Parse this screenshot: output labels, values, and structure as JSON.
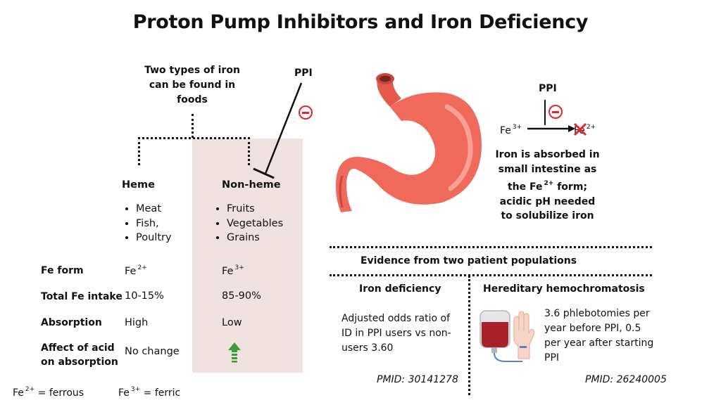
{
  "title": "Proton Pump Inhibitors and Iron Deficiency",
  "left": {
    "intro": "Two types of iron can be found in foods",
    "ppi_label": "PPI",
    "heme": {
      "header": "Heme",
      "items": [
        "Meat",
        "Fish,",
        "Poultry"
      ]
    },
    "nonheme": {
      "header": "Non-heme",
      "items": [
        "Fruits",
        "Vegetables",
        "Grains"
      ]
    },
    "rows": {
      "fe_form": {
        "label": "Fe form",
        "heme_base": "Fe",
        "heme_sup": "2+",
        "nonheme_base": "Fe",
        "nonheme_sup": "3+"
      },
      "intake": {
        "label": "Total Fe intake",
        "heme": "10-15%",
        "nonheme": "85-90%"
      },
      "absorption": {
        "label": "Absorption",
        "heme": "High",
        "nonheme": "Low"
      },
      "acid": {
        "label": "Affect of acid on absorption",
        "heme": "No change"
      }
    },
    "legend": {
      "ferrous_base": "Fe",
      "ferrous_sup": "2+",
      "ferrous_text": "= ferrous",
      "ferric_base": "Fe",
      "ferric_sup": "3+",
      "ferric_text": "= ferric"
    }
  },
  "right": {
    "ppi_label": "PPI",
    "fe3_base": "Fe",
    "fe3_sup": "3+",
    "fe2_base": "Fe",
    "fe2_sup": "2+",
    "absorb_1": "Iron is absorbed in small intestine as the Fe",
    "absorb_sup": "2+",
    "absorb_2": " form; acidic pH needed to solubilize iron",
    "evidence_title": "Evidence from two patient populations",
    "iron_def": {
      "header": "Iron deficiency",
      "text": "Adjusted odds ratio of ID in PPI users vs non-users 3.60",
      "pmid": "PMID: 30141278"
    },
    "hemo": {
      "header": "Hereditary hemochromatosis",
      "text": "3.6 phlebotomies per year before PPI, 0.5 per year after starting PPI",
      "pmid": "PMID: 26240005"
    }
  },
  "colors": {
    "stomach": "#ef6a5a",
    "inhibit_red": "#e0282a",
    "shade": "#f0e2e1",
    "arrow_green": "#3a9d3a"
  }
}
